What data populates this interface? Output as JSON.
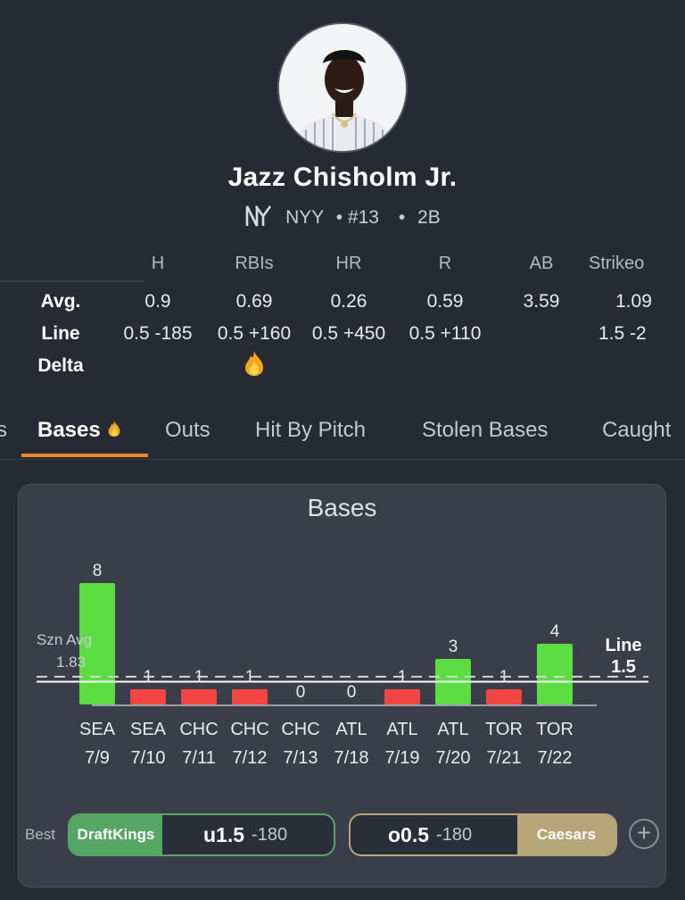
{
  "player": {
    "name": "Jazz Chisholm Jr.",
    "team": "NYY",
    "number": "• #13",
    "sep": "•",
    "position": "2B"
  },
  "stats": {
    "columns": [
      "H",
      "RBIs",
      "HR",
      "R",
      "AB",
      "Strikeo"
    ],
    "rows": {
      "avg_label": "Avg.",
      "line_label": "Line",
      "delta_label": "Delta",
      "avg": [
        "0.9",
        "0.69",
        "0.26",
        "0.59",
        "3.59",
        "1.09"
      ],
      "line": [
        "0.5 -185",
        "0.5 +160",
        "0.5 +450",
        "0.5 +110",
        "",
        "1.5 -2"
      ],
      "delta_fire_col": 1
    }
  },
  "tabs": {
    "items": [
      {
        "label": "s"
      },
      {
        "label": "Bases",
        "active": true,
        "fire": true
      },
      {
        "label": "Outs"
      },
      {
        "label": "Hit By Pitch"
      },
      {
        "label": "Stolen Bases"
      },
      {
        "label": "Caught"
      }
    ]
  },
  "chart": {
    "title": "Bases",
    "avg_label": "Szn Avg",
    "avg_value": "1.83",
    "line_label": "Line",
    "line_value": "1.5"
  },
  "chart_data": {
    "type": "bar",
    "title": "Bases",
    "categories": [
      "SEA 7/9",
      "SEA 7/10",
      "CHC 7/11",
      "CHC 7/12",
      "CHC 7/13",
      "ATL 7/18",
      "ATL 7/19",
      "ATL 7/20",
      "TOR 7/21",
      "TOR 7/22"
    ],
    "opponents": [
      "SEA",
      "SEA",
      "CHC",
      "CHC",
      "CHC",
      "ATL",
      "ATL",
      "ATL",
      "TOR",
      "TOR"
    ],
    "dates": [
      "7/9",
      "7/10",
      "7/11",
      "7/12",
      "7/13",
      "7/18",
      "7/19",
      "7/20",
      "7/21",
      "7/22"
    ],
    "values": [
      8,
      1,
      1,
      1,
      0,
      0,
      1,
      3,
      1,
      4
    ],
    "season_average": 1.83,
    "line": 1.5,
    "colors": {
      "over": "#5cdd41",
      "under": "#f34444"
    }
  },
  "best": {
    "label": "Best",
    "draftkings": {
      "brand": "DraftKings",
      "pick": "u1.5",
      "odds": "-180"
    },
    "caesars": {
      "brand": "Caesars",
      "pick": "o0.5",
      "odds": "-180"
    },
    "add": "+"
  }
}
